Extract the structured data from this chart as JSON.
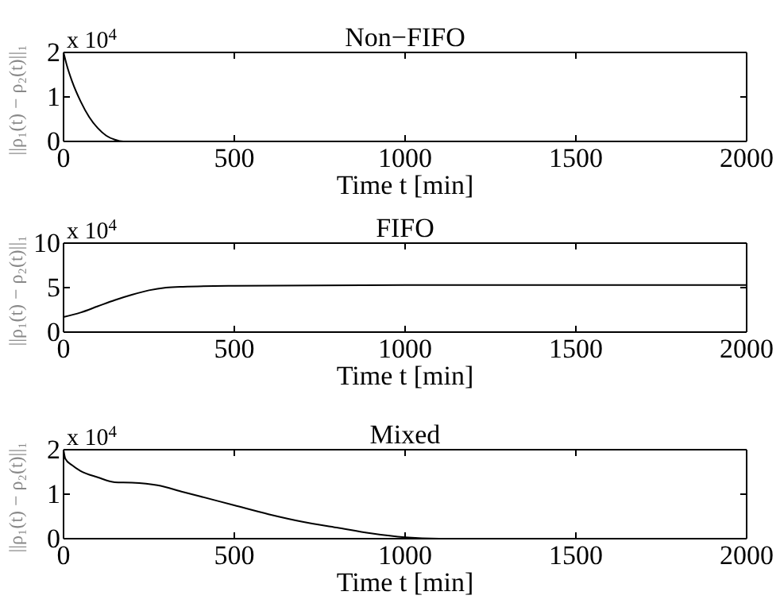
{
  "chart_data": [
    {
      "type": "line",
      "title": "Non−FIFO",
      "xlabel": "Time t [min]",
      "ylabel": "||ρ₁(t) − ρ₂(t)||₁",
      "annotations": [
        "x 10$^{4}$"
      ],
      "x": [
        0,
        10,
        25,
        50,
        75,
        100,
        125,
        150,
        175,
        2000
      ],
      "series": [
        {
          "color": "#000000",
          "values": [
            2.0,
            1.7,
            1.35,
            0.9,
            0.55,
            0.3,
            0.13,
            0.04,
            0.0,
            0.0
          ]
        }
      ],
      "xlim": [
        0,
        2000
      ],
      "xticks": [
        0,
        500,
        1000,
        1500,
        2000
      ],
      "ylim": [
        0,
        2
      ],
      "yticks": [
        0,
        1,
        2
      ],
      "grid": false
    },
    {
      "type": "line",
      "title": "FIFO",
      "xlabel": "Time t [min]",
      "ylabel": "||ρ₁(t) − ρ₂(t)||₁",
      "annotations": [
        "x 10$^{4}$"
      ],
      "x": [
        0,
        50,
        100,
        150,
        200,
        250,
        300,
        350,
        500,
        1000,
        2000
      ],
      "series": [
        {
          "color": "#000000",
          "values": [
            1.7,
            2.2,
            2.9,
            3.6,
            4.2,
            4.7,
            5.0,
            5.1,
            5.2,
            5.3,
            5.3
          ]
        }
      ],
      "xlim": [
        0,
        2000
      ],
      "xticks": [
        0,
        500,
        1000,
        1500,
        2000
      ],
      "ylim": [
        0,
        10
      ],
      "yticks": [
        0,
        5,
        10
      ],
      "grid": false
    },
    {
      "type": "line",
      "title": "Mixed",
      "xlabel": "Time t [min]",
      "ylabel": "||ρ₁(t) − ρ₂(t)||₁",
      "annotations": [
        "x 10$^{4}$"
      ],
      "x": [
        0,
        5,
        25,
        50,
        100,
        150,
        200,
        275,
        350,
        400,
        500,
        600,
        700,
        800,
        900,
        1000,
        1100,
        2000
      ],
      "series": [
        {
          "color": "#000000",
          "values": [
            2.0,
            1.8,
            1.65,
            1.52,
            1.38,
            1.27,
            1.26,
            1.2,
            1.05,
            0.95,
            0.75,
            0.55,
            0.38,
            0.25,
            0.12,
            0.03,
            0.0,
            0.0
          ]
        }
      ],
      "xlim": [
        0,
        2000
      ],
      "xticks": [
        0,
        500,
        1000,
        1500,
        2000
      ],
      "ylim": [
        0,
        2
      ],
      "yticks": [
        0,
        1,
        2
      ],
      "grid": false
    }
  ]
}
